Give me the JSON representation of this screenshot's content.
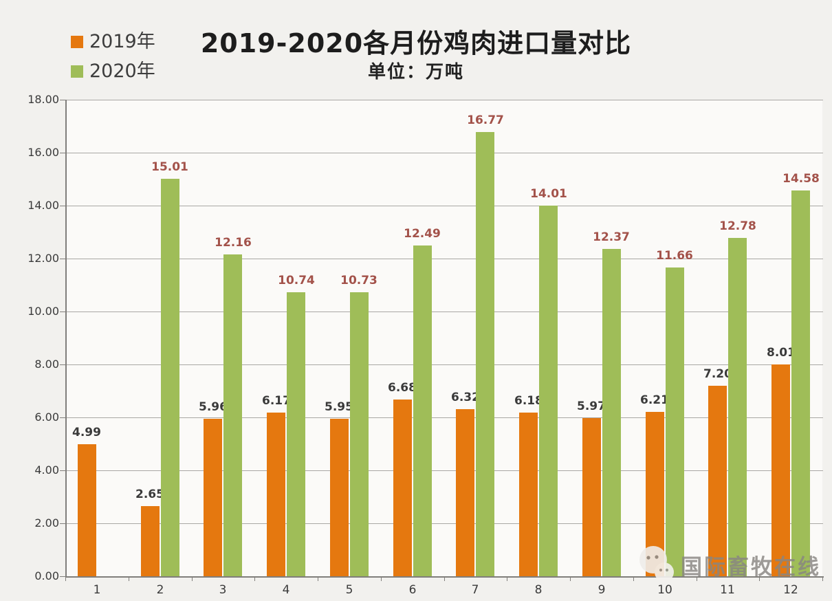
{
  "page": {
    "background": "#f2f1ee"
  },
  "header": {
    "title": "2019-2020各月份鸡肉进口量对比",
    "subtitle": "单位：万吨"
  },
  "legend": {
    "items": [
      {
        "label": "2019年",
        "color": "#e5780f"
      },
      {
        "label": "2020年",
        "color": "#9fbd58"
      }
    ]
  },
  "watermark": {
    "text": "国际畜牧在线",
    "icon": "wechat-icon"
  },
  "colors": {
    "bar_2019": "#e5780f",
    "bar_2020": "#9fbd58",
    "label_2019": "#3a3a3a",
    "label_2020": "#a3524a",
    "gridline": "#a9a7a4",
    "axis": "#807e7b",
    "tick_text": "#3a3a3a"
  },
  "chart_data": {
    "type": "bar",
    "title": "2019-2020各月份鸡肉进口量对比",
    "subtitle": "单位：万吨",
    "unit_label": "万吨",
    "categories": [
      "1",
      "2",
      "3",
      "4",
      "5",
      "6",
      "7",
      "8",
      "9",
      "10",
      "11",
      "12"
    ],
    "series": [
      {
        "name": "2019年",
        "color": "#e5780f",
        "label_color": "#3a3a3a",
        "values": [
          4.99,
          2.65,
          5.96,
          6.17,
          5.95,
          6.68,
          6.32,
          6.18,
          5.97,
          6.21,
          7.2,
          8.01
        ]
      },
      {
        "name": "2020年",
        "color": "#9fbd58",
        "label_color": "#a3524a",
        "values": [
          null,
          15.01,
          12.16,
          10.74,
          10.73,
          12.49,
          16.77,
          14.01,
          12.37,
          11.66,
          12.78,
          14.58
        ]
      }
    ],
    "ylim": [
      0,
      18
    ],
    "ytick_step": 2,
    "ytick_format": "0.00",
    "grid": true,
    "legend_position": "top-left",
    "value_labels": true
  }
}
